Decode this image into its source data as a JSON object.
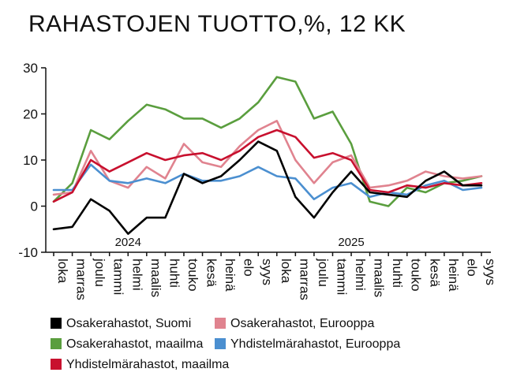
{
  "chart_data": {
    "type": "line",
    "title": "RAHASTOJEN TUOTTO,%, 12 KK",
    "categories": [
      "loka",
      "marras",
      "joulu",
      "tammi",
      "helmi",
      "maalis",
      "huhti",
      "touko",
      "kesä",
      "heinä",
      "elo",
      "syys",
      "loka",
      "marras",
      "joulu",
      "tammi",
      "helmi",
      "maalis",
      "huhti",
      "touko",
      "kesä",
      "heinä",
      "elo",
      "syys"
    ],
    "year_labels": [
      {
        "label": "2024",
        "at_category": 4
      },
      {
        "label": "2025",
        "at_category": 16
      }
    ],
    "yticks": [
      "30",
      "20",
      "10",
      "0",
      "-10"
    ],
    "ylim": [
      -10,
      30
    ],
    "grid": false,
    "legend_position": "bottom",
    "series": [
      {
        "name": "Osakerahastot, Suomi",
        "color": "#000000",
        "values": [
          -5,
          -4.5,
          1.5,
          -1,
          -6,
          -2.5,
          -2.5,
          7,
          5,
          6.5,
          10,
          14,
          12,
          2,
          -2.5,
          3,
          7.5,
          3,
          2.5,
          2,
          5.5,
          7.5,
          4.5,
          4.5
        ]
      },
      {
        "name": "Osakerahastot, Eurooppa",
        "color": "#e0838f",
        "values": [
          2.5,
          3,
          12,
          5.5,
          4,
          8.5,
          6,
          13.5,
          9.5,
          8.5,
          13,
          16.5,
          18.5,
          10,
          5,
          9.5,
          11,
          4,
          4.5,
          5.5,
          7.5,
          6.5,
          6,
          6.5
        ]
      },
      {
        "name": "Osakerahastot, maailma",
        "color": "#5a9e3e",
        "values": [
          1,
          5,
          16.5,
          14.5,
          18.5,
          22,
          21,
          19,
          19,
          17,
          19,
          22.5,
          28,
          27,
          19,
          20.5,
          13.5,
          1,
          0,
          4,
          3,
          5,
          5.5,
          6.5
        ]
      },
      {
        "name": "Yhdistelmärahastot, Eurooppa",
        "color": "#4b8fd0",
        "values": [
          3.5,
          3.5,
          9,
          5.5,
          5,
          6,
          5,
          7,
          5.5,
          5.5,
          6.5,
          8.5,
          6.5,
          6,
          1.5,
          4,
          5,
          2,
          3,
          2.5,
          4.5,
          5.5,
          3.5,
          4
        ]
      },
      {
        "name": "Yhdistelmärahastot, maailma",
        "color": "#c8102e",
        "values": [
          1,
          3,
          10,
          7.5,
          9.5,
          11.5,
          10,
          11,
          11.5,
          10,
          12,
          15,
          16.5,
          15,
          10.5,
          11.5,
          10,
          3.5,
          3,
          4.5,
          4,
          5,
          4.5,
          5
        ]
      }
    ]
  }
}
